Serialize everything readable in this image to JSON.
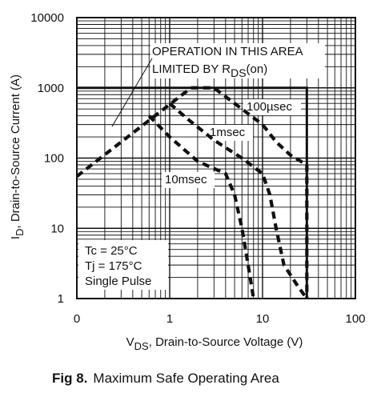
{
  "chart_data": {
    "type": "line",
    "title": "",
    "caption_number": "Fig 8.",
    "caption_text": "Maximum Safe Operating Area",
    "xscale": "log",
    "yscale": "log",
    "xlim": [
      0.1,
      100
    ],
    "ylim": [
      1,
      10000
    ],
    "grid": true,
    "x_ticks": [
      {
        "value": 0.1,
        "label": "0"
      },
      {
        "value": 1,
        "label": "1"
      },
      {
        "value": 10,
        "label": "10"
      },
      {
        "value": 100,
        "label": "100"
      }
    ],
    "y_ticks": [
      {
        "value": 1,
        "label": "1"
      },
      {
        "value": 10,
        "label": "10"
      },
      {
        "value": 100,
        "label": "100"
      },
      {
        "value": 1000,
        "label": "1000"
      },
      {
        "value": 10000,
        "label": "10000"
      }
    ],
    "xlabel": {
      "main": "V",
      "sub": "DS",
      "rest": ", Drain-to-Source Voltage (V)"
    },
    "ylabel": {
      "main": "I",
      "sub": "D",
      "rest": ", Drain-to-Source Current (A)"
    },
    "annotations": {
      "rds_line1": "OPERATION IN THIS AREA",
      "rds_line2_a": "LIMITED BY R",
      "rds_line2_sub": "DS",
      "rds_line2_b": "(on)",
      "conditions": [
        "Tc = 25°C",
        "Tj = 175°C",
        "Single Pulse"
      ]
    },
    "limit_box": {
      "x_max": 30,
      "y_max": 1000
    },
    "rds_on_line": {
      "x": [
        0.1,
        1.7
      ],
      "y": [
        55,
        1000
      ]
    },
    "series": [
      {
        "name": "100µsec",
        "x": [
          1.7,
          3,
          6,
          10,
          14,
          20,
          30,
          30
        ],
        "y": [
          1000,
          1000,
          500,
          300,
          170,
          110,
          80,
          1
        ]
      },
      {
        "name": "1msec",
        "x": [
          1,
          1.6,
          3,
          6,
          10,
          12,
          14,
          17,
          24,
          30
        ],
        "y": [
          600,
          350,
          180,
          100,
          60,
          30,
          10,
          3,
          1.5,
          1
        ]
      },
      {
        "name": "10msec",
        "x": [
          0.6,
          1,
          2,
          4,
          5,
          6,
          7,
          8
        ],
        "y": [
          400,
          200,
          90,
          60,
          30,
          10,
          3,
          1
        ]
      }
    ]
  }
}
